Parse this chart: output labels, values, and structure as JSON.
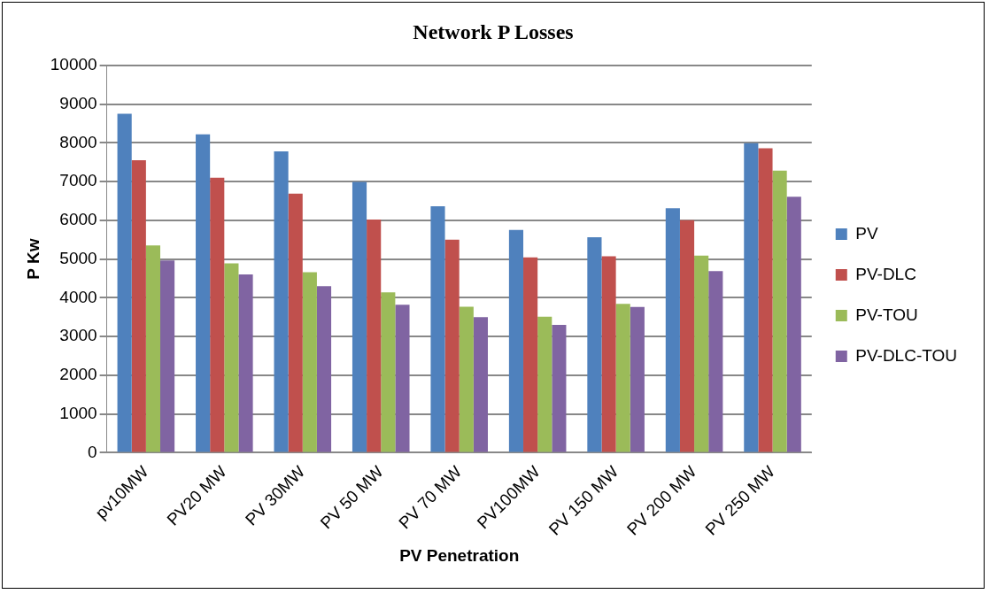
{
  "chart_data": {
    "type": "bar",
    "title": "Network P Losses",
    "xlabel": "PV Penetration",
    "ylabel": "P Kw",
    "categories": [
      "pv10MW",
      "PV20 MW",
      "PV 30MW",
      "PV 50 MW",
      "PV 70 MW",
      "PV100MW",
      "PV 150 MW",
      "PV 200 MW",
      "PV 250 MW"
    ],
    "series": [
      {
        "name": "PV",
        "color": "#4f81bd",
        "values": [
          8750,
          8220,
          7780,
          6990,
          6360,
          5750,
          5560,
          6310,
          7990
        ]
      },
      {
        "name": "PV-DLC",
        "color": "#c0504d",
        "values": [
          7550,
          7100,
          6690,
          6020,
          5500,
          5040,
          5070,
          6000,
          7860
        ]
      },
      {
        "name": "PV-TOU",
        "color": "#9bbb59",
        "values": [
          5350,
          4890,
          4660,
          4140,
          3770,
          3510,
          3840,
          5090,
          7280
        ]
      },
      {
        "name": "PV-DLC-TOU",
        "color": "#8064a2",
        "values": [
          4960,
          4600,
          4300,
          3820,
          3500,
          3300,
          3760,
          4690,
          6610
        ]
      }
    ],
    "ylim": [
      0,
      10000
    ],
    "yticks": [
      0,
      1000,
      2000,
      3000,
      4000,
      5000,
      6000,
      7000,
      8000,
      9000,
      10000
    ],
    "grid": "y",
    "legend": "right"
  }
}
